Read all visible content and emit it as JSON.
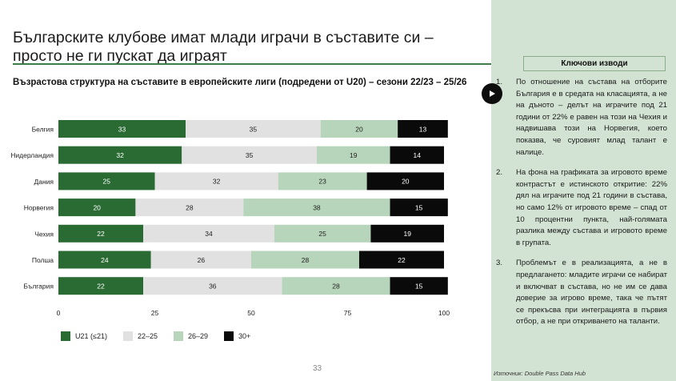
{
  "slide": {
    "title": "Българските клубове имат млади играчи в съставите си – просто не ги пускат да играят",
    "page_number": "33"
  },
  "chart_data": {
    "type": "bar",
    "orientation": "horizontal",
    "stacked": true,
    "title": "Възрастова структура на съставите в европейските лиги (подредени от U20) – сезони 22/23 – 25/26",
    "categories": [
      "Белгия",
      "Нидерландия",
      "Дания",
      "Норвегия",
      "Чехия",
      "Полша",
      "България"
    ],
    "series": [
      {
        "name": "U21 (≤21)",
        "color": "#2a6b34",
        "label_color": "#ffffff",
        "values": [
          33,
          32,
          25,
          20,
          22,
          24,
          22
        ]
      },
      {
        "name": "22–25",
        "color": "#e1e1e1",
        "label_color": "#222222",
        "values": [
          35,
          35,
          32,
          28,
          34,
          26,
          36
        ]
      },
      {
        "name": "26–29",
        "color": "#b7d5ba",
        "label_color": "#222222",
        "values": [
          20,
          19,
          23,
          38,
          25,
          28,
          28
        ]
      },
      {
        "name": "30+",
        "color": "#0a0a0a",
        "label_color": "#ffffff",
        "values": [
          13,
          14,
          20,
          15,
          19,
          22,
          15
        ]
      }
    ],
    "x_ticks": [
      0,
      25,
      50,
      75,
      100
    ],
    "xlim": [
      0,
      100
    ],
    "grid": false,
    "legend": "bottom-left"
  },
  "side_panel": {
    "header": "Ключови изводи",
    "findings": [
      {
        "num": "1.",
        "text": "По отношение на състава на отборите България е в средата на класацията, а не на дъното – делът на играчите под 21 години от 22% е равен на този на Чехия и надвишава този на Норвегия, което показва, че суровият млад талант е налице."
      },
      {
        "num": "2.",
        "text": "На фона на графиката за игровото време контрастът е истинското откритие: 22% дял на играчите под 21 години в състава, но само 12% от игровото време – спад от 10 процентни пункта, най-голямата разлика между състава и игровото време в групата."
      },
      {
        "num": "3.",
        "text": "Проблемът е в реализацията, а не в предлагането: младите играчи се набират и включват в състава, но не им се дава доверие за игрово време, така че пътят се прекъсва при интеграцията в първия отбор, а не при откриването на таланти."
      }
    ],
    "source": "Източник: Double Pass Data Hub"
  },
  "icons": {
    "play": "play-icon"
  }
}
